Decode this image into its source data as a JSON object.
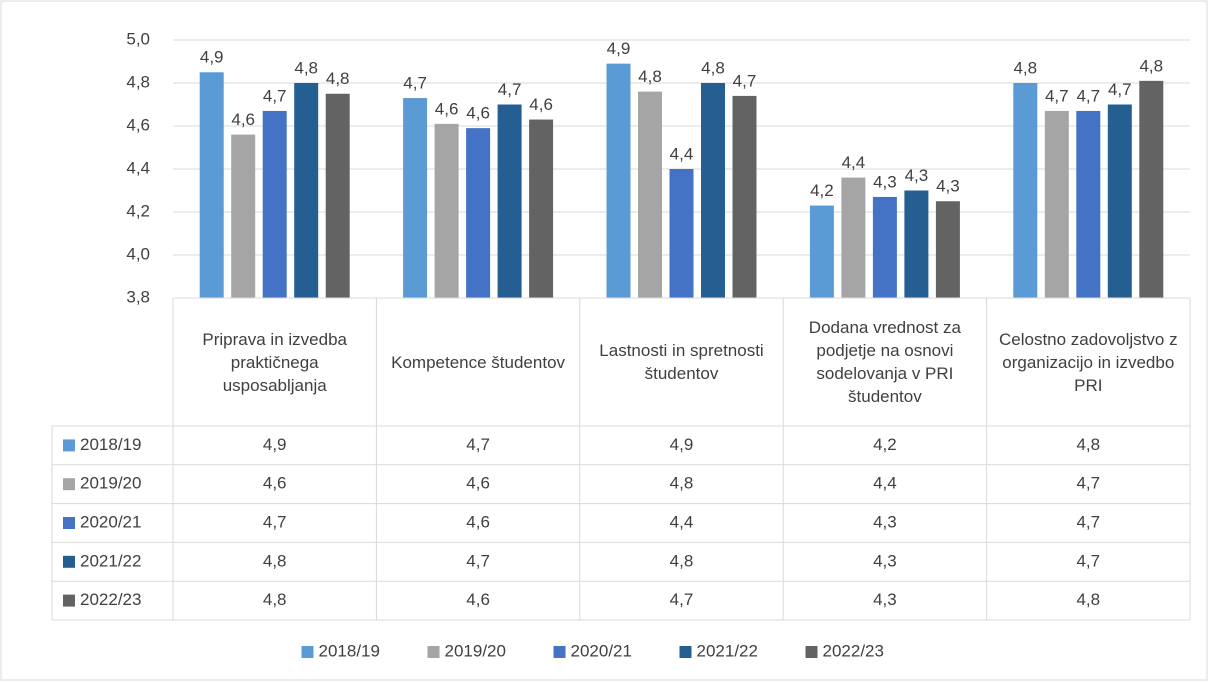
{
  "chart_data": {
    "type": "bar",
    "categories": [
      "Priprava in izvedba praktičnega usposabljanja",
      "Kompetence študentov",
      "Lastnosti in spretnosti študentov",
      "Dodana vrednost za podjetje na osnovi sodelovanja v PRI študentov",
      "Celostno zadovoljstvo z organizacijo in izvedbo PRI"
    ],
    "series": [
      {
        "name": "2018/19",
        "color": "#5b9bd5",
        "values": [
          4.85,
          4.73,
          4.89,
          4.23,
          4.8
        ],
        "value_labels": [
          "4,9",
          "4,7",
          "4,9",
          "4,2",
          "4,8"
        ]
      },
      {
        "name": "2019/20",
        "color": "#a5a5a5",
        "values": [
          4.56,
          4.61,
          4.76,
          4.36,
          4.67
        ],
        "value_labels": [
          "4,6",
          "4,6",
          "4,8",
          "4,4",
          "4,7"
        ]
      },
      {
        "name": "2020/21",
        "color": "#4472c4",
        "values": [
          4.67,
          4.59,
          4.4,
          4.27,
          4.67
        ],
        "value_labels": [
          "4,7",
          "4,6",
          "4,4",
          "4,3",
          "4,7"
        ]
      },
      {
        "name": "2021/22",
        "color": "#255e91",
        "values": [
          4.8,
          4.7,
          4.8,
          4.3,
          4.7
        ],
        "value_labels": [
          "4,8",
          "4,7",
          "4,8",
          "4,3",
          "4,7"
        ]
      },
      {
        "name": "2022/23",
        "color": "#636363",
        "values": [
          4.75,
          4.63,
          4.74,
          4.25,
          4.81
        ],
        "value_labels": [
          "4,8",
          "4,6",
          "4,7",
          "4,3",
          "4,8"
        ]
      }
    ],
    "ylim": [
      3.8,
      5.0
    ],
    "yticks": [
      {
        "value": 3.8,
        "label": "3,8"
      },
      {
        "value": 4.0,
        "label": "4,0"
      },
      {
        "value": 4.2,
        "label": "4,2"
      },
      {
        "value": 4.4,
        "label": "4,4"
      },
      {
        "value": 4.6,
        "label": "4,6"
      },
      {
        "value": 4.8,
        "label": "4,8"
      },
      {
        "value": 5.0,
        "label": "5,0"
      }
    ],
    "grid": true,
    "legend": "bottom",
    "data_table": true
  }
}
